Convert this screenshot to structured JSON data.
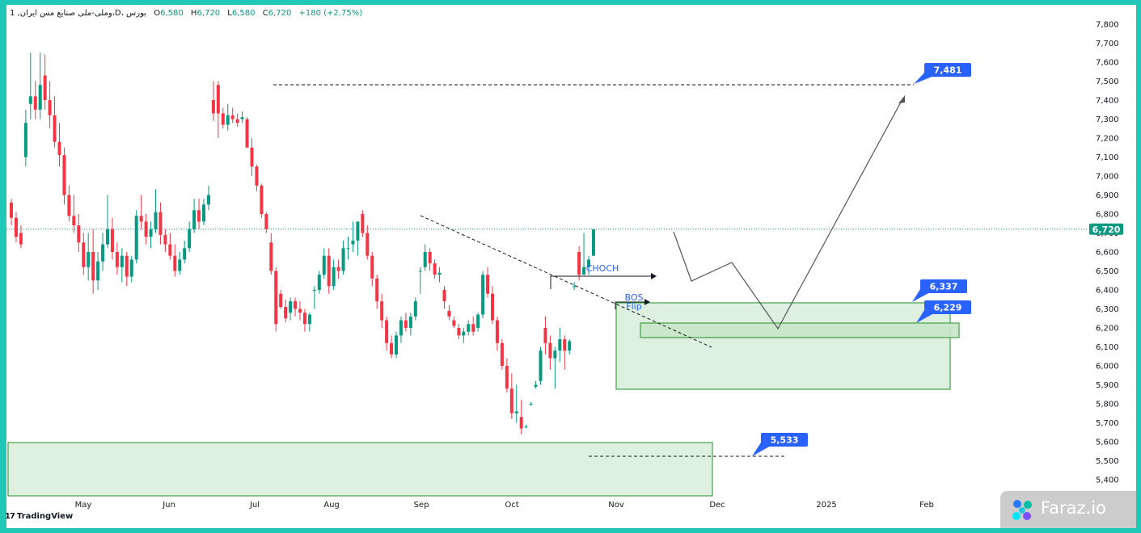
{
  "header": {
    "symbol_line": "1 ,وملی-ملی صنایع مس ایران،D، بورس",
    "open_label": "O",
    "open_value": "6,580",
    "high_label": "H",
    "high_value": "6,720",
    "low_label": "L",
    "low_value": "6,580",
    "close_label": "C",
    "close_value": "6,720",
    "change": "+180 (+2.75%)"
  },
  "footer": {
    "tradingview": "TradingView",
    "watermark": "Faraz.io"
  },
  "colors": {
    "up": "#089981",
    "down": "#f23645",
    "zone_fill": "#c8e6c9",
    "zone_stroke": "#43a047",
    "label_bg": "#2962ff",
    "price_tag": "#089981",
    "frame": "#1fc8b6"
  },
  "chart_data": {
    "type": "candlestick",
    "y_ticks": [
      "5,400",
      "5,500",
      "5,600",
      "5,700",
      "5,800",
      "5,900",
      "6,000",
      "6,100",
      "6,200",
      "6,300",
      "6,400",
      "6,500",
      "6,600",
      "6,700",
      "6,800",
      "6,900",
      "7,000",
      "7,100",
      "7,200",
      "7,300",
      "7,400",
      "7,500",
      "7,600",
      "7,700",
      "7,800"
    ],
    "x_ticks": [
      "May",
      "Jun",
      "Jul",
      "Aug",
      "Sep",
      "Oct",
      "Nov",
      "Dec",
      "2025",
      "Feb"
    ],
    "ylim": [
      5350,
      7900
    ],
    "last_price": "6,720",
    "annotations": [
      "CHOCH",
      "BOS",
      "Flip"
    ],
    "price_labels": [
      "7,481",
      "6,337",
      "6,229",
      "5,533"
    ],
    "candles": [
      [
        6860,
        6880,
        6740,
        6780
      ],
      [
        6780,
        6810,
        6650,
        6680
      ],
      [
        6700,
        6740,
        6620,
        6640
      ],
      [
        7100,
        7350,
        7050,
        7280
      ],
      [
        7380,
        7650,
        7300,
        7420
      ],
      [
        7420,
        7500,
        7300,
        7350
      ],
      [
        7350,
        7650,
        7300,
        7480
      ],
      [
        7530,
        7640,
        7350,
        7400
      ],
      [
        7400,
        7500,
        7250,
        7320
      ],
      [
        7320,
        7420,
        7150,
        7180
      ],
      [
        7180,
        7280,
        7050,
        7110
      ],
      [
        7110,
        7150,
        6850,
        6900
      ],
      [
        6900,
        6950,
        6760,
        6790
      ],
      [
        6790,
        6900,
        6700,
        6740
      ],
      [
        6740,
        6800,
        6600,
        6650
      ],
      [
        6650,
        6700,
        6480,
        6520
      ],
      [
        6520,
        6700,
        6450,
        6600
      ],
      [
        6600,
        6720,
        6380,
        6450
      ],
      [
        6450,
        6600,
        6400,
        6550
      ],
      [
        6550,
        6700,
        6500,
        6640
      ],
      [
        6640,
        6900,
        6620,
        6720
      ],
      [
        6720,
        6780,
        6560,
        6600
      ],
      [
        6600,
        6650,
        6480,
        6520
      ],
      [
        6520,
        6620,
        6440,
        6580
      ],
      [
        6580,
        6600,
        6420,
        6470
      ],
      [
        6470,
        6580,
        6440,
        6560
      ],
      [
        6560,
        6820,
        6540,
        6790
      ],
      [
        6790,
        6900,
        6720,
        6760
      ],
      [
        6760,
        6800,
        6640,
        6680
      ],
      [
        6680,
        6760,
        6620,
        6720
      ],
      [
        6720,
        6930,
        6700,
        6810
      ],
      [
        6810,
        6860,
        6640,
        6690
      ],
      [
        6690,
        6720,
        6600,
        6640
      ],
      [
        6640,
        6700,
        6560,
        6580
      ],
      [
        6580,
        6640,
        6470,
        6500
      ],
      [
        6500,
        6600,
        6480,
        6560
      ],
      [
        6560,
        6660,
        6540,
        6620
      ],
      [
        6620,
        6760,
        6600,
        6720
      ],
      [
        6720,
        6880,
        6700,
        6820
      ],
      [
        6820,
        6880,
        6720,
        6760
      ],
      [
        6760,
        6880,
        6740,
        6850
      ],
      [
        6850,
        6950,
        6820,
        6900
      ],
      [
        7400,
        7500,
        7290,
        7330
      ],
      [
        7480,
        7500,
        7200,
        7330
      ],
      [
        7330,
        7360,
        7250,
        7270
      ],
      [
        7270,
        7380,
        7240,
        7320
      ],
      [
        7320,
        7360,
        7280,
        7300
      ],
      [
        7300,
        7330,
        7260,
        7280
      ],
      [
        7300,
        7340,
        7280,
        7310
      ],
      [
        7300,
        7310,
        7150,
        7150
      ],
      [
        7150,
        7200,
        7000,
        7050
      ],
      [
        7050,
        7060,
        6920,
        6950
      ],
      [
        6950,
        6960,
        6780,
        6800
      ],
      [
        6800,
        6810,
        6700,
        6720
      ],
      [
        6650,
        6700,
        6480,
        6500
      ],
      [
        6500,
        6520,
        6180,
        6220
      ],
      [
        6380,
        6400,
        6300,
        6310
      ],
      [
        6310,
        6350,
        6230,
        6250
      ],
      [
        6280,
        6360,
        6240,
        6340
      ],
      [
        6340,
        6360,
        6260,
        6300
      ],
      [
        6300,
        6340,
        6240,
        6280
      ],
      [
        6280,
        6300,
        6180,
        6220
      ],
      [
        6220,
        6280,
        6180,
        6270
      ],
      [
        6400,
        6420,
        6300,
        6400
      ],
      [
        6400,
        6500,
        6380,
        6480
      ],
      [
        6480,
        6620,
        6460,
        6580
      ],
      [
        6580,
        6620,
        6380,
        6420
      ],
      [
        6420,
        6560,
        6400,
        6520
      ],
      [
        6520,
        6560,
        6460,
        6500
      ],
      [
        6500,
        6660,
        6480,
        6620
      ],
      [
        6620,
        6680,
        6560,
        6620
      ],
      [
        6640,
        6760,
        6600,
        6660
      ],
      [
        6660,
        6760,
        6580,
        6760
      ],
      [
        6800,
        6820,
        6680,
        6700
      ],
      [
        6700,
        6740,
        6560,
        6580
      ],
      [
        6580,
        6600,
        6420,
        6460
      ],
      [
        6460,
        6480,
        6300,
        6340
      ],
      [
        6340,
        6380,
        6200,
        6240
      ],
      [
        6240,
        6260,
        6080,
        6120
      ],
      [
        6120,
        6160,
        6040,
        6060
      ],
      [
        6060,
        6180,
        6040,
        6160
      ],
      [
        6160,
        6260,
        6120,
        6240
      ],
      [
        6240,
        6280,
        6180,
        6200
      ],
      [
        6200,
        6280,
        6160,
        6260
      ],
      [
        6260,
        6360,
        6240,
        6340
      ],
      [
        6500,
        6520,
        6380,
        6500
      ],
      [
        6520,
        6640,
        6500,
        6600
      ],
      [
        6600,
        6620,
        6500,
        6540
      ],
      [
        6540,
        6560,
        6460,
        6480
      ],
      [
        6480,
        6520,
        6440,
        6490
      ],
      [
        6400,
        6420,
        6300,
        6340
      ],
      [
        6290,
        6320,
        6240,
        6260
      ],
      [
        6240,
        6260,
        6200,
        6210
      ],
      [
        6200,
        6220,
        6140,
        6160
      ],
      [
        6160,
        6200,
        6120,
        6180
      ],
      [
        6180,
        6240,
        6160,
        6220
      ],
      [
        6220,
        6260,
        6160,
        6180
      ],
      [
        6200,
        6280,
        6180,
        6270
      ],
      [
        6270,
        6500,
        6250,
        6480
      ],
      [
        6480,
        6520,
        6360,
        6380
      ],
      [
        6380,
        6420,
        6220,
        6240
      ],
      [
        6240,
        6260,
        6080,
        6120
      ],
      [
        6120,
        6140,
        5980,
        6000
      ],
      [
        6000,
        6040,
        5860,
        5880
      ],
      [
        5880,
        5960,
        5720,
        5750
      ],
      [
        5750,
        5900,
        5700,
        5760
      ],
      [
        5730,
        5820,
        5640,
        5670
      ],
      [
        5680,
        5690,
        5670,
        5680
      ],
      [
        5800,
        5810,
        5790,
        5800
      ],
      [
        5890,
        5920,
        5880,
        5900
      ],
      [
        5920,
        6100,
        5900,
        6080
      ],
      [
        6200,
        6260,
        6060,
        6120
      ],
      [
        6120,
        6160,
        5980,
        6040
      ],
      [
        6040,
        6100,
        5880,
        6080
      ],
      [
        6080,
        6200,
        6020,
        6140
      ],
      [
        6140,
        6160,
        5980,
        6080
      ],
      [
        6080,
        6140,
        6060,
        6130
      ],
      [
        6420,
        6440,
        6400,
        6420
      ],
      [
        6600,
        6630,
        6450,
        6480
      ],
      [
        6480,
        6700,
        6480,
        6520
      ],
      [
        6520,
        6580,
        6480,
        6560
      ],
      [
        6580,
        6720,
        6580,
        6720
      ]
    ]
  }
}
